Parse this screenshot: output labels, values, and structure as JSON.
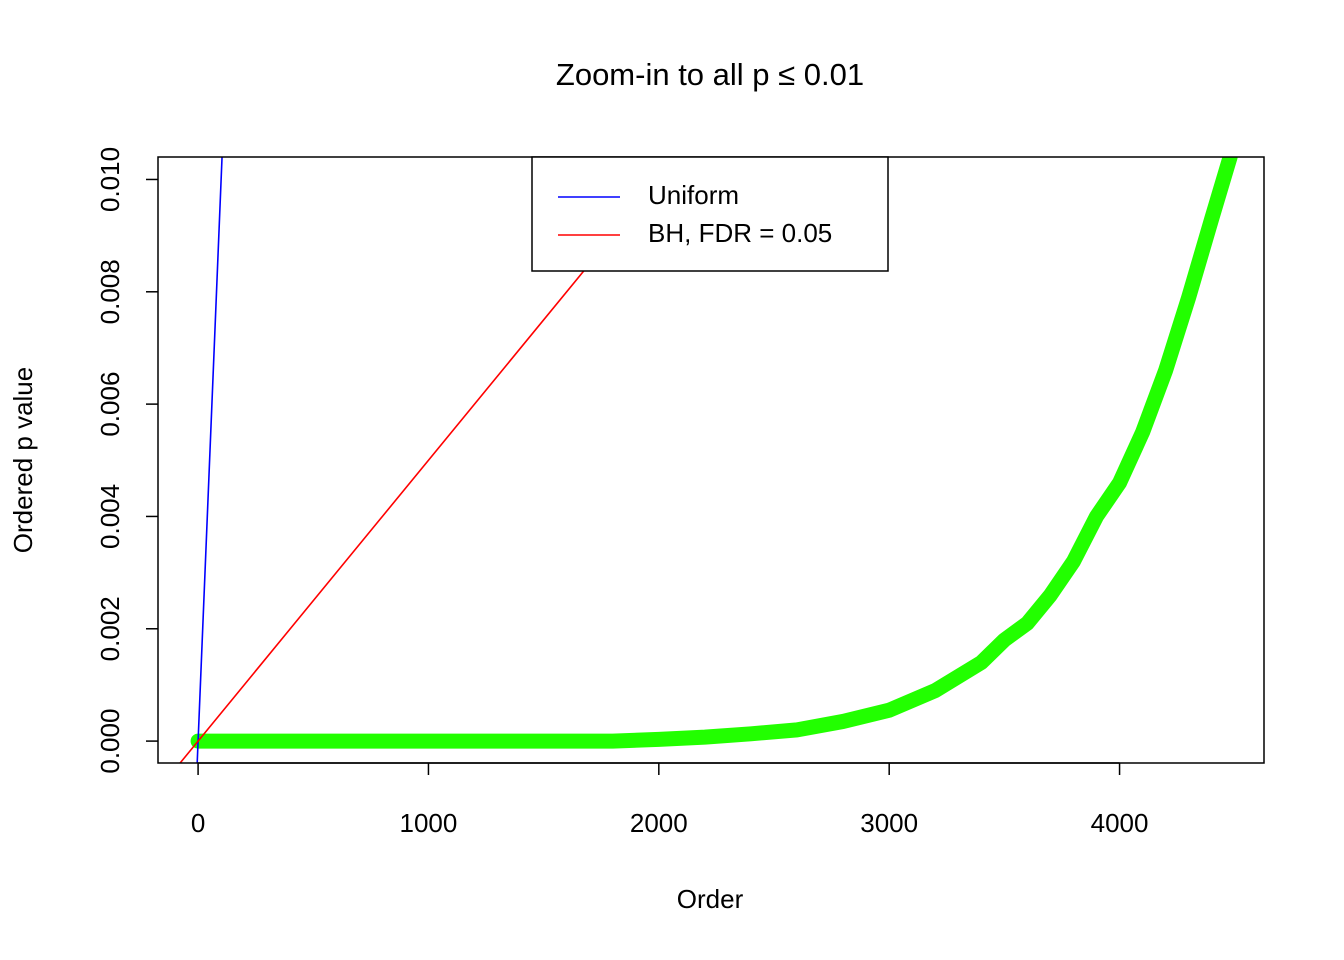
{
  "chart_data": {
    "type": "line",
    "title": "Zoom-in to all p ≤ 0.01",
    "x_label": "Order",
    "y_label": "Ordered p value",
    "xlim": [
      -174,
      4627
    ],
    "ylim": [
      -0.00039,
      0.0104
    ],
    "xticks": [
      0,
      1000,
      2000,
      3000,
      4000
    ],
    "yticks": [
      {
        "value": 0,
        "label": "0.000"
      },
      {
        "value": 0.002,
        "label": "0.002"
      },
      {
        "value": 0.004,
        "label": "0.004"
      },
      {
        "value": 0.006,
        "label": "0.006"
      },
      {
        "value": 0.008,
        "label": "0.008"
      },
      {
        "value": 0.01,
        "label": "0.010"
      }
    ],
    "legend": "top",
    "series": [
      {
        "color": "#22ff00",
        "x": [
          0,
          1000,
          1800,
          2000,
          2200,
          2400,
          2600,
          2800,
          3000,
          3200,
          3400,
          3500,
          3600,
          3700,
          3800,
          3900,
          4000,
          4100,
          4200,
          4300,
          4400,
          4480
        ],
        "values": [
          0,
          0,
          0,
          3e-05,
          7e-05,
          0.00013,
          0.0002,
          0.00035,
          0.00055,
          0.0009,
          0.0014,
          0.0018,
          0.0021,
          0.0026,
          0.0032,
          0.004,
          0.0046,
          0.0055,
          0.0066,
          0.0079,
          0.0093,
          0.0104
        ]
      },
      {
        "name": "Uniform",
        "color": "#0000ff",
        "x": [
          -3.9,
          104
        ],
        "values": [
          -0.00039,
          0.0104
        ]
      },
      {
        "name": "BH, FDR = 0.05",
        "color": "#ff0000",
        "x": [
          -78,
          2080
        ],
        "values": [
          -0.00039,
          0.0104
        ]
      }
    ]
  }
}
